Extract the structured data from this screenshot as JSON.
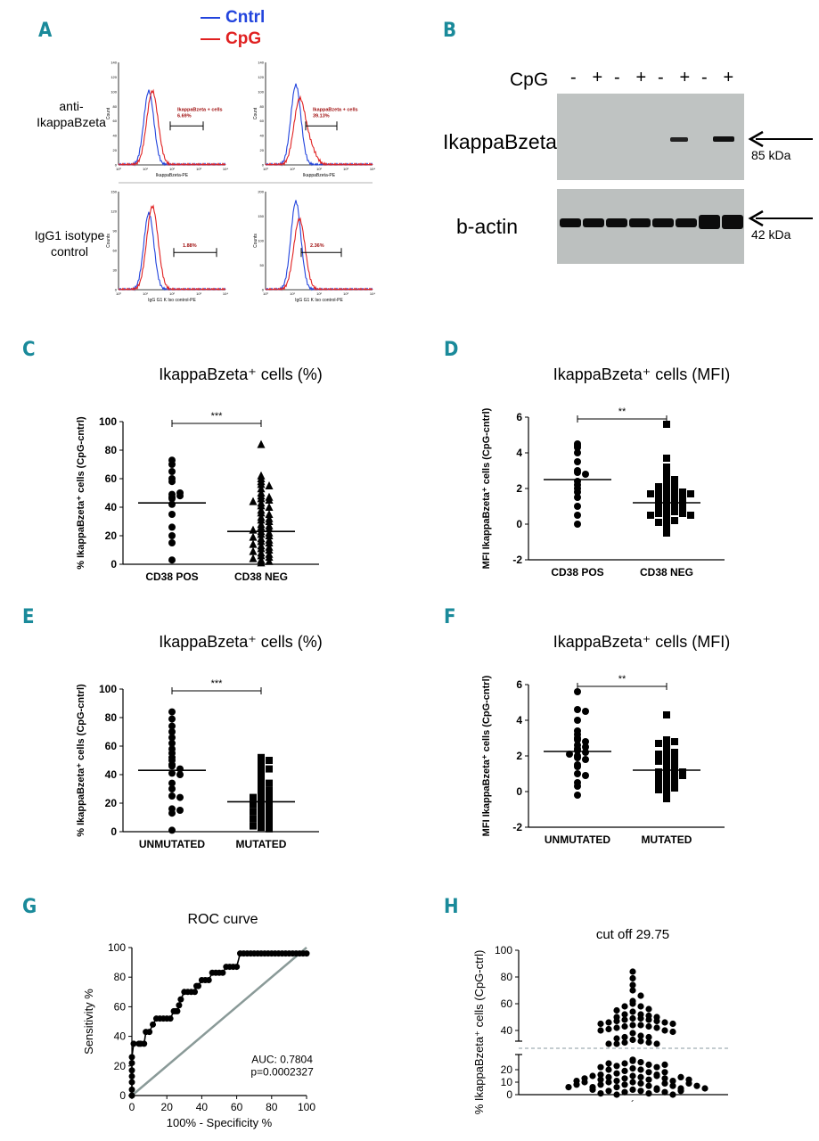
{
  "colors": {
    "accent": "#1a8a9a",
    "cntrl": "#2244dd",
    "cpg": "#e02020",
    "gate_text": "#a01010",
    "roc_diag": "#8a9a98",
    "cutoff_line": "#8a9aa0"
  },
  "panels": {
    "A": "A",
    "B": "B",
    "C": "C",
    "D": "D",
    "E": "E",
    "F": "F",
    "G": "G",
    "H": "H"
  },
  "legend": {
    "cntrl": "Cntrl",
    "cpg": "CpG"
  },
  "panel_a": {
    "row1_label": "anti-\nIkappaBzeta",
    "row2_label": "IgG1 isotype\ncontrol",
    "hist1": {
      "gate_title": "IkappaBzeta + cells",
      "gate_value": "6.69%",
      "xlabel": "IkappaBzeta-PE",
      "ylabel": "Count",
      "yticks": [
        "0",
        "20",
        "40",
        "60",
        "80",
        "100",
        "120",
        "140"
      ]
    },
    "hist2": {
      "gate_title": "IkappaBzeta + cells",
      "gate_value": "39.13%",
      "xlabel": "IkappaBzeta-PE",
      "ylabel": "Count",
      "yticks": [
        "0",
        "20",
        "40",
        "60",
        "80",
        "100",
        "120",
        "140"
      ]
    },
    "hist3": {
      "gate_value": "1.88%",
      "xlabel": "IgG G1 K Iso control-PE",
      "ylabel": "Counts",
      "yticks": [
        "0",
        "30",
        "60",
        "90",
        "120",
        "150"
      ]
    },
    "hist4": {
      "gate_value": "2.36%",
      "xlabel": "IgG G1 K Iso control-PE",
      "ylabel": "Counts",
      "yticks": [
        "0",
        "50",
        "100",
        "150",
        "200"
      ]
    },
    "xticks": [
      "10⁰",
      "10¹",
      "10²",
      "10³",
      "10⁴"
    ]
  },
  "panel_b": {
    "cpg_label": "CpG",
    "lanes": [
      "-",
      "+",
      "-",
      "+",
      "-",
      "+",
      "-",
      "+"
    ],
    "band1": "IkappaBzeta",
    "band2": "b-actin",
    "kda1": "85 kDa",
    "kda2": "42 kDa"
  },
  "chart_data": [
    {
      "id": "C",
      "type": "scatter",
      "title": "IkappaBzeta⁺ cells (%)",
      "ylabel": "% IkappaBzeta⁺ cells (CpG-cntrl)",
      "categories": [
        "CD38 POS",
        "CD38 NEG"
      ],
      "ylim": [
        0,
        100
      ],
      "yticks": [
        0,
        20,
        40,
        60,
        80,
        100
      ],
      "significance": "***",
      "series": [
        {
          "name": "CD38 POS",
          "marker": "circle",
          "median": 43,
          "values": [
            73,
            70,
            65,
            60,
            58,
            47,
            48,
            49,
            50,
            46,
            42,
            35,
            26,
            20,
            15,
            3
          ]
        },
        {
          "name": "CD38 NEG",
          "marker": "triangle",
          "median": 23,
          "values": [
            84,
            62,
            60,
            58,
            56,
            55,
            53,
            50,
            48,
            47,
            46,
            45,
            44,
            43,
            41,
            40,
            38,
            36,
            35,
            33,
            32,
            31,
            30,
            28,
            27,
            26,
            25,
            24,
            23,
            22,
            21,
            20,
            19,
            18,
            17,
            16,
            15,
            14,
            13,
            12,
            11,
            10,
            9,
            8,
            7,
            6,
            5,
            4,
            3,
            2,
            1
          ]
        }
      ]
    },
    {
      "id": "D",
      "type": "scatter",
      "title": "IkappaBzeta⁺ cells (MFI)",
      "ylabel": "MFI IkappaBzeta⁺ cells (CpG-cntrl)",
      "categories": [
        "CD38 POS",
        "CD38 NEG"
      ],
      "ylim": [
        -2,
        6
      ],
      "yticks": [
        -2,
        0,
        2,
        4,
        6
      ],
      "significance": "**",
      "series": [
        {
          "name": "CD38 POS",
          "marker": "circle",
          "median": 2.5,
          "values": [
            4.5,
            4.4,
            4.3,
            4.0,
            3.5,
            3.0,
            2.9,
            2.8,
            2.4,
            2.2,
            2.0,
            1.8,
            1.5,
            1.0,
            0.5,
            0.0
          ]
        },
        {
          "name": "CD38 NEG",
          "marker": "square",
          "median": 1.2,
          "values": [
            5.6,
            3.7,
            3.2,
            3.0,
            2.8,
            2.6,
            2.5,
            2.4,
            2.3,
            2.2,
            2.1,
            2.0,
            2.0,
            1.9,
            1.9,
            1.8,
            1.8,
            1.7,
            1.7,
            1.6,
            1.6,
            1.5,
            1.5,
            1.4,
            1.4,
            1.3,
            1.3,
            1.2,
            1.2,
            1.1,
            1.1,
            1.0,
            1.0,
            0.9,
            0.9,
            0.8,
            0.8,
            0.7,
            0.7,
            0.6,
            0.6,
            0.5,
            0.5,
            0.4,
            0.3,
            0.2,
            0.1,
            0.0,
            -0.2,
            -0.5
          ]
        }
      ]
    },
    {
      "id": "E",
      "type": "scatter",
      "title": "IkappaBzeta⁺ cells (%)",
      "ylabel": "% IkappaBzeta⁺ cells (CpG-cntrl)",
      "categories": [
        "UNMUTATED",
        "MUTATED"
      ],
      "ylim": [
        0,
        100
      ],
      "yticks": [
        0,
        20,
        40,
        60,
        80,
        100
      ],
      "significance": "***",
      "series": [
        {
          "name": "UNMUTATED",
          "marker": "circle",
          "median": 43,
          "values": [
            84,
            79,
            74,
            70,
            66,
            62,
            58,
            55,
            52,
            50,
            47,
            46,
            44,
            41,
            40,
            34,
            30,
            25,
            24,
            16,
            15,
            13,
            1
          ]
        },
        {
          "name": "MUTATED",
          "marker": "square",
          "median": 21,
          "values": [
            52,
            51,
            50,
            48,
            46,
            44,
            42,
            40,
            38,
            36,
            34,
            32,
            30,
            29,
            28,
            27,
            26,
            25,
            24,
            23,
            22,
            21,
            20,
            19,
            18,
            17,
            16,
            15,
            14,
            13,
            12,
            11,
            10,
            9,
            8,
            7,
            6,
            5,
            4,
            3,
            2
          ]
        }
      ]
    },
    {
      "id": "F",
      "type": "scatter",
      "title": "IkappaBzeta⁺ cells (MFI)",
      "ylabel": "MFI IkappaBzeta⁺ cells (CpG-cntrl)",
      "categories": [
        "UNMUTATED",
        "MUTATED"
      ],
      "ylim": [
        -2,
        6
      ],
      "yticks": [
        -2,
        0,
        2,
        4,
        6
      ],
      "significance": "**",
      "series": [
        {
          "name": "UNMUTATED",
          "marker": "circle",
          "median": 2.25,
          "values": [
            5.6,
            4.6,
            4.5,
            4.0,
            3.4,
            3.2,
            3.0,
            2.9,
            2.8,
            2.6,
            2.5,
            2.4,
            2.3,
            2.2,
            2.1,
            2.0,
            1.9,
            1.8,
            1.5,
            1.4,
            1.0,
            0.9,
            0.5,
            0.3,
            -0.2
          ]
        },
        {
          "name": "MUTATED",
          "marker": "square",
          "median": 1.2,
          "values": [
            4.3,
            2.9,
            2.8,
            2.7,
            2.6,
            2.4,
            2.3,
            2.2,
            2.1,
            2.0,
            1.9,
            1.8,
            1.7,
            1.6,
            1.5,
            1.4,
            1.3,
            1.2,
            1.2,
            1.1,
            1.1,
            1.0,
            1.0,
            0.9,
            0.9,
            0.8,
            0.8,
            0.7,
            0.6,
            0.5,
            0.4,
            0.3,
            0.2,
            0.1,
            0.0,
            -0.4
          ]
        }
      ]
    },
    {
      "id": "G",
      "type": "line",
      "title": "ROC curve",
      "xlabel": "100% - Specificity %",
      "ylabel": "Sensitivity %",
      "xlim": [
        0,
        100
      ],
      "ylim": [
        0,
        100
      ],
      "xticks": [
        0,
        20,
        40,
        60,
        80,
        100
      ],
      "yticks": [
        0,
        20,
        40,
        60,
        80,
        100
      ],
      "annotation": "AUC: 0.7804\np=0.0002327",
      "x": [
        0,
        0,
        0,
        0,
        0,
        0,
        0,
        1,
        4,
        5,
        7,
        8,
        10,
        12,
        14,
        16,
        18,
        20,
        22,
        24,
        25,
        26,
        27,
        28,
        30,
        32,
        34,
        36,
        37,
        38,
        40,
        42,
        44,
        46,
        48,
        50,
        52,
        54,
        56,
        58,
        60,
        62,
        64,
        66,
        68,
        70,
        72,
        74,
        76,
        78,
        80,
        82,
        84,
        86,
        88,
        90,
        92,
        94,
        96,
        98,
        100
      ],
      "y": [
        0,
        4,
        9,
        13,
        17,
        22,
        26,
        35,
        35,
        35,
        35,
        43,
        43,
        48,
        52,
        52,
        52,
        52,
        52,
        57,
        57,
        57,
        61,
        65,
        70,
        70,
        70,
        70,
        74,
        74,
        78,
        78,
        78,
        83,
        83,
        83,
        83,
        87,
        87,
        87,
        87,
        96,
        96,
        96,
        96,
        96,
        96,
        96,
        96,
        96,
        96,
        96,
        96,
        96,
        96,
        96,
        96,
        96,
        96,
        96,
        96
      ]
    },
    {
      "id": "H",
      "type": "scatter",
      "title": "cut off 29.75",
      "ylabel": "% IkappaBzeta⁺ cells (CpG-ctrl)",
      "yticks_lower": [
        0,
        10,
        20
      ],
      "yticks_upper": [
        40,
        60,
        80,
        100
      ],
      "cutoff": 29.75,
      "x_tick_label": "´",
      "values": [
        84,
        79,
        74,
        70,
        66,
        62,
        60,
        58,
        58,
        56,
        55,
        54,
        52,
        52,
        51,
        50,
        50,
        49,
        49,
        48,
        48,
        47,
        47,
        46,
        46,
        45,
        45,
        44,
        44,
        43,
        43,
        42,
        42,
        41,
        40,
        40,
        39,
        38,
        36,
        35,
        35,
        34,
        33,
        32,
        31,
        31,
        30,
        30,
        30,
        28,
        27,
        26,
        25,
        24,
        23,
        22,
        21,
        20,
        19,
        18,
        17,
        16,
        15,
        14,
        13,
        12,
        11,
        10,
        9,
        8,
        7,
        6,
        5,
        4,
        3,
        2,
        1,
        0,
        25,
        24,
        22,
        20,
        18,
        16,
        15,
        14,
        13,
        12,
        11,
        10,
        9,
        8,
        7,
        6,
        5,
        4,
        3,
        2,
        1,
        0,
        15,
        14,
        13,
        12,
        11,
        10,
        9,
        8,
        7,
        6,
        5,
        4,
        3
      ]
    }
  ]
}
